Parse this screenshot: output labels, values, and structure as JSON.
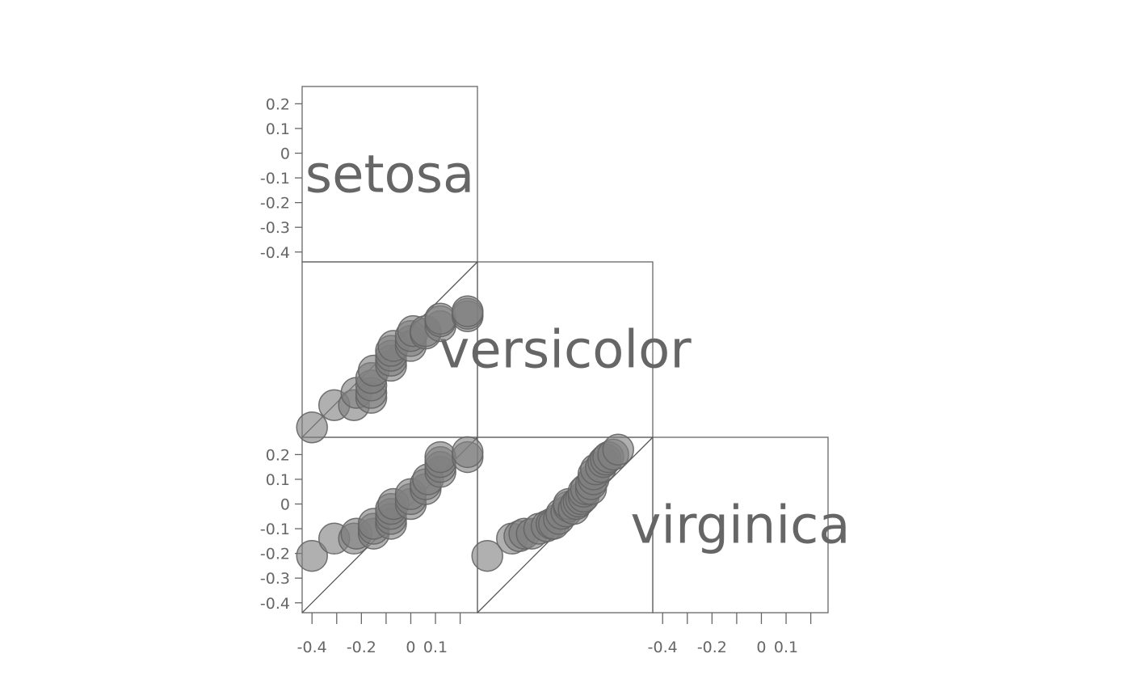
{
  "chart_data": {
    "type": "scatter",
    "title": "",
    "variables": [
      "setosa",
      "versicolor",
      "virginica"
    ],
    "axis": {
      "range": [
        -0.44,
        0.27
      ],
      "ticks": [
        -0.4,
        -0.3,
        -0.2,
        -0.1,
        0,
        0.1,
        0.2
      ],
      "y_tick_labels": [
        "0.2",
        "0.1",
        "0",
        "-0.1",
        "-0.2",
        "-0.3",
        "-0.4"
      ],
      "x_tick_labels": [
        "-0.4",
        "-0.2",
        "0",
        "0.1"
      ]
    },
    "colors": {
      "points": "#808080",
      "frame": "#666666",
      "text": "#666666"
    },
    "panels": [
      {
        "row": "versicolor",
        "col": "setosa",
        "points": [
          [
            -0.4,
            -0.4
          ],
          [
            -0.31,
            -0.31
          ],
          [
            -0.23,
            -0.31
          ],
          [
            -0.22,
            -0.26
          ],
          [
            -0.16,
            -0.28
          ],
          [
            -0.16,
            -0.26
          ],
          [
            -0.16,
            -0.23
          ],
          [
            -0.16,
            -0.2
          ],
          [
            -0.15,
            -0.17
          ],
          [
            -0.08,
            -0.15
          ],
          [
            -0.08,
            -0.13
          ],
          [
            -0.08,
            -0.11
          ],
          [
            -0.08,
            -0.09
          ],
          [
            -0.07,
            -0.07
          ],
          [
            0.0,
            -0.07
          ],
          [
            0.0,
            -0.05
          ],
          [
            0.0,
            -0.03
          ],
          [
            0.01,
            -0.01
          ],
          [
            0.06,
            -0.02
          ],
          [
            0.06,
            -0.01
          ],
          [
            0.12,
            0.01
          ],
          [
            0.12,
            0.03
          ],
          [
            0.12,
            0.04
          ],
          [
            0.23,
            0.05
          ],
          [
            0.23,
            0.06
          ],
          [
            0.23,
            0.07
          ]
        ]
      },
      {
        "row": "virginica",
        "col": "setosa",
        "points": [
          [
            -0.4,
            -0.21
          ],
          [
            -0.31,
            -0.14
          ],
          [
            -0.23,
            -0.14
          ],
          [
            -0.22,
            -0.12
          ],
          [
            -0.15,
            -0.12
          ],
          [
            -0.15,
            -0.1
          ],
          [
            -0.15,
            -0.08
          ],
          [
            -0.08,
            -0.08
          ],
          [
            -0.08,
            -0.06
          ],
          [
            -0.08,
            -0.04
          ],
          [
            -0.08,
            -0.02
          ],
          [
            -0.07,
            0.0
          ],
          [
            0.0,
            0.0
          ],
          [
            0.0,
            0.02
          ],
          [
            0.0,
            0.04
          ],
          [
            0.06,
            0.06
          ],
          [
            0.06,
            0.08
          ],
          [
            0.07,
            0.1
          ],
          [
            0.12,
            0.13
          ],
          [
            0.12,
            0.15
          ],
          [
            0.12,
            0.17
          ],
          [
            0.12,
            0.19
          ],
          [
            0.23,
            0.19
          ],
          [
            0.23,
            0.21
          ]
        ]
      },
      {
        "row": "virginica",
        "col": "versicolor",
        "points": [
          [
            -0.4,
            -0.21
          ],
          [
            -0.3,
            -0.14
          ],
          [
            -0.27,
            -0.13
          ],
          [
            -0.25,
            -0.12
          ],
          [
            -0.22,
            -0.12
          ],
          [
            -0.19,
            -0.1
          ],
          [
            -0.16,
            -0.09
          ],
          [
            -0.14,
            -0.08
          ],
          [
            -0.13,
            -0.08
          ],
          [
            -0.11,
            -0.06
          ],
          [
            -0.1,
            -0.04
          ],
          [
            -0.08,
            -0.03
          ],
          [
            -0.07,
            -0.01
          ],
          [
            -0.07,
            0.0
          ],
          [
            -0.05,
            -0.02
          ],
          [
            -0.04,
            0.0
          ],
          [
            -0.03,
            0.01
          ],
          [
            -0.02,
            0.02
          ],
          [
            -0.01,
            0.03
          ],
          [
            -0.01,
            0.05
          ],
          [
            0.0,
            0.06
          ],
          [
            0.02,
            0.06
          ],
          [
            0.02,
            0.08
          ],
          [
            0.03,
            0.1
          ],
          [
            0.03,
            0.12
          ],
          [
            0.04,
            0.14
          ],
          [
            0.06,
            0.15
          ],
          [
            0.07,
            0.17
          ],
          [
            0.08,
            0.18
          ],
          [
            0.09,
            0.19
          ],
          [
            0.11,
            0.2
          ],
          [
            0.13,
            0.22
          ]
        ]
      }
    ]
  }
}
